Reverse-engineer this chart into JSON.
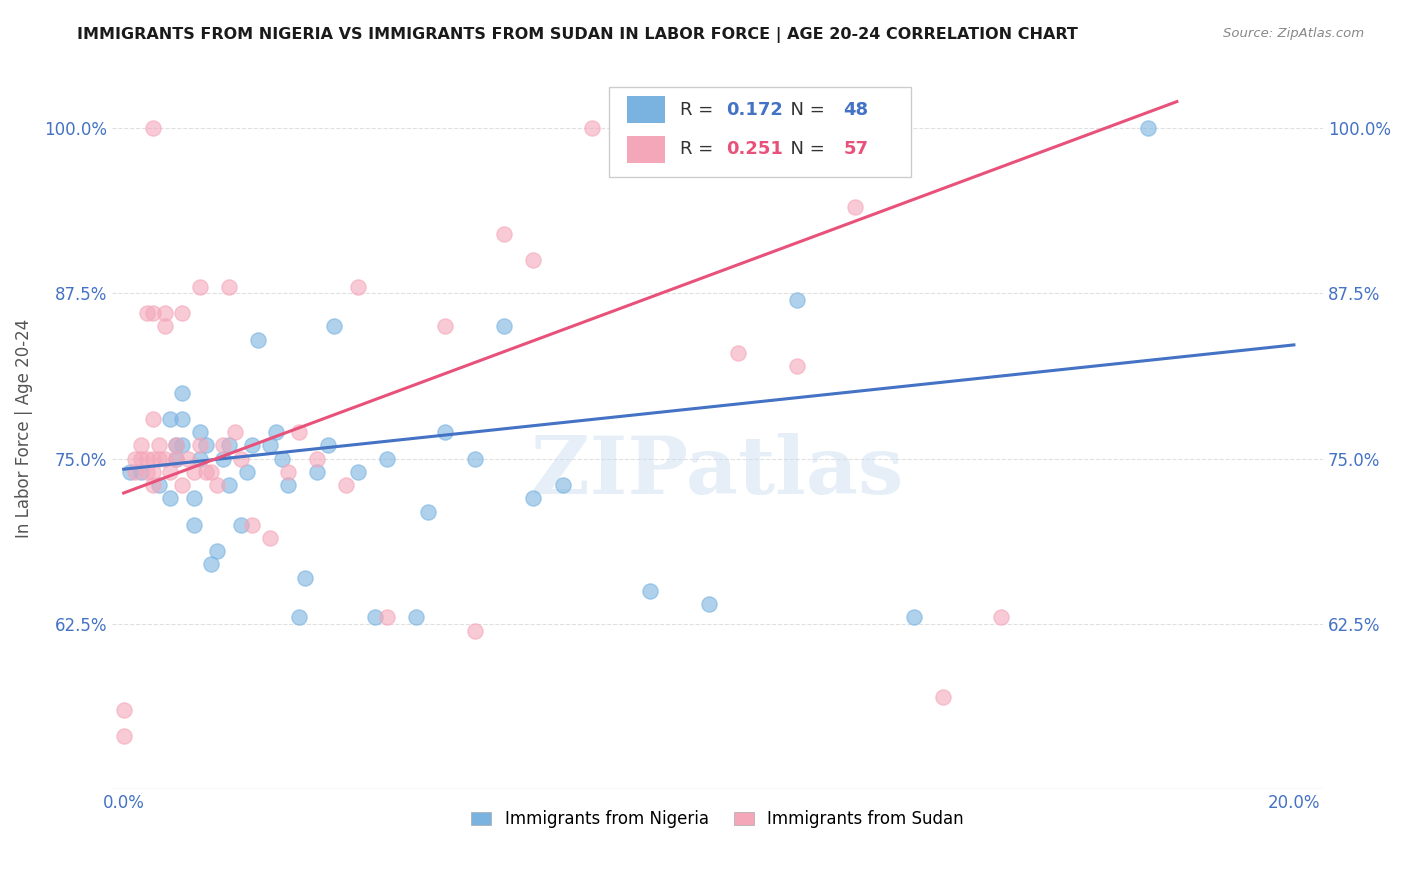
{
  "title": "IMMIGRANTS FROM NIGERIA VS IMMIGRANTS FROM SUDAN IN LABOR FORCE | AGE 20-24 CORRELATION CHART",
  "source": "Source: ZipAtlas.com",
  "ylabel": "In Labor Force | Age 20-24",
  "xlim": [
    -0.002,
    0.205
  ],
  "ylim": [
    0.5,
    1.045
  ],
  "xticks": [
    0.0,
    0.04,
    0.08,
    0.12,
    0.16,
    0.2
  ],
  "xticklabels": [
    "0.0%",
    "",
    "",
    "",
    "",
    "20.0%"
  ],
  "yticks": [
    0.625,
    0.75,
    0.875,
    1.0
  ],
  "yticklabels": [
    "62.5%",
    "75.0%",
    "87.5%",
    "100.0%"
  ],
  "nigeria_R": 0.172,
  "nigeria_N": 48,
  "sudan_R": 0.251,
  "sudan_N": 57,
  "nigeria_color": "#7ab3e0",
  "sudan_color": "#f4a7b9",
  "nigeria_line_color": "#4472c4",
  "sudan_line_color": "#e8527a",
  "nigeria_scatter_x": [
    0.001,
    0.003,
    0.006,
    0.008,
    0.008,
    0.009,
    0.009,
    0.01,
    0.01,
    0.01,
    0.012,
    0.012,
    0.013,
    0.013,
    0.014,
    0.015,
    0.016,
    0.017,
    0.018,
    0.018,
    0.02,
    0.021,
    0.022,
    0.023,
    0.025,
    0.026,
    0.027,
    0.028,
    0.03,
    0.031,
    0.033,
    0.035,
    0.036,
    0.04,
    0.043,
    0.045,
    0.05,
    0.052,
    0.055,
    0.06,
    0.065,
    0.07,
    0.075,
    0.09,
    0.1,
    0.115,
    0.135,
    0.175
  ],
  "nigeria_scatter_y": [
    0.74,
    0.74,
    0.73,
    0.72,
    0.78,
    0.76,
    0.75,
    0.76,
    0.78,
    0.8,
    0.7,
    0.72,
    0.75,
    0.77,
    0.76,
    0.67,
    0.68,
    0.75,
    0.73,
    0.76,
    0.7,
    0.74,
    0.76,
    0.84,
    0.76,
    0.77,
    0.75,
    0.73,
    0.63,
    0.66,
    0.74,
    0.76,
    0.85,
    0.74,
    0.63,
    0.75,
    0.63,
    0.71,
    0.77,
    0.75,
    0.85,
    0.72,
    0.73,
    0.65,
    0.64,
    0.87,
    0.63,
    1.0
  ],
  "sudan_scatter_x": [
    0.0,
    0.0,
    0.002,
    0.002,
    0.003,
    0.003,
    0.004,
    0.004,
    0.004,
    0.005,
    0.005,
    0.005,
    0.005,
    0.005,
    0.005,
    0.006,
    0.006,
    0.007,
    0.007,
    0.007,
    0.008,
    0.009,
    0.009,
    0.01,
    0.01,
    0.011,
    0.012,
    0.013,
    0.013,
    0.014,
    0.015,
    0.016,
    0.017,
    0.018,
    0.019,
    0.02,
    0.022,
    0.025,
    0.028,
    0.03,
    0.033,
    0.038,
    0.04,
    0.045,
    0.055,
    0.06,
    0.065,
    0.07,
    0.08,
    0.085,
    0.09,
    0.1,
    0.105,
    0.115,
    0.125,
    0.14,
    0.15
  ],
  "sudan_scatter_y": [
    0.54,
    0.56,
    0.74,
    0.75,
    0.75,
    0.76,
    0.74,
    0.75,
    0.86,
    0.73,
    0.74,
    0.75,
    0.78,
    0.86,
    1.0,
    0.75,
    0.76,
    0.75,
    0.85,
    0.86,
    0.74,
    0.75,
    0.76,
    0.73,
    0.86,
    0.75,
    0.74,
    0.76,
    0.88,
    0.74,
    0.74,
    0.73,
    0.76,
    0.88,
    0.77,
    0.75,
    0.7,
    0.69,
    0.74,
    0.77,
    0.75,
    0.73,
    0.88,
    0.63,
    0.85,
    0.62,
    0.92,
    0.9,
    1.0,
    1.0,
    1.0,
    1.0,
    0.83,
    0.82,
    0.94,
    0.57,
    0.63
  ],
  "nigeria_trend_x": [
    0.0,
    0.2
  ],
  "nigeria_trend_y": [
    0.742,
    0.836
  ],
  "sudan_trend_x": [
    0.0,
    0.18
  ],
  "sudan_trend_y": [
    0.724,
    1.02
  ],
  "watermark": "ZIPatlas",
  "background_color": "#ffffff",
  "grid_color": "#e0e0e0"
}
